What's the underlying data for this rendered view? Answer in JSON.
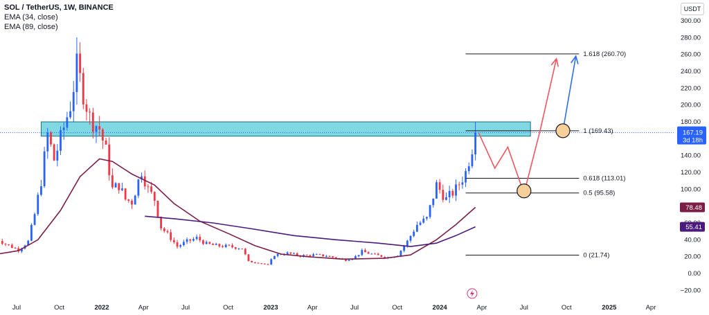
{
  "legend": {
    "title": "SOL / TetherUS, 1W, BINANCE",
    "ema34": "EMA (34, close)",
    "ema89": "EMA (89, close)"
  },
  "currency_label": "USDT",
  "colors": {
    "up": "#2962ff",
    "down": "#f23645",
    "ema34": "#7b1e47",
    "ema89": "#4a1a7d",
    "zone_fill": "#80d8e3",
    "zone_stroke": "#1b6f7a",
    "arrow_red": "#f0545f",
    "arrow_blue": "#2f6de8",
    "circle_fill": "#f6cf9b",
    "price_tag": "#2962ff",
    "ema34_tag": "#7b1e47",
    "ema89_tag": "#4a1a7d"
  },
  "chart_data": {
    "type": "candlestick",
    "yaxis": {
      "ticks": [
        -20,
        0,
        20,
        40,
        60,
        80,
        100,
        120,
        140,
        160,
        180,
        200,
        220,
        240,
        260,
        280,
        300
      ],
      "tick_labels": [
        "−20.00",
        "0.00",
        "20.00",
        "40.00",
        "60.00",
        "80.00",
        "100.00",
        "120.00",
        "140.00",
        "160.00",
        "180.00",
        "200.00",
        "220.00",
        "240.00",
        "260.00",
        "280.00",
        "300.00"
      ]
    },
    "xaxis": {
      "ticks": [
        {
          "label": "Jul",
          "date": "2021-07-01",
          "bold": false
        },
        {
          "label": "Oct",
          "date": "2021-10-01",
          "bold": false
        },
        {
          "label": "2022",
          "date": "2022-01-01",
          "bold": true
        },
        {
          "label": "Apr",
          "date": "2022-04-01",
          "bold": false
        },
        {
          "label": "Jul",
          "date": "2022-07-01",
          "bold": false
        },
        {
          "label": "Oct",
          "date": "2022-10-01",
          "bold": false
        },
        {
          "label": "2023",
          "date": "2023-01-01",
          "bold": true
        },
        {
          "label": "Apr",
          "date": "2023-04-01",
          "bold": false
        },
        {
          "label": "Jul",
          "date": "2023-07-01",
          "bold": false
        },
        {
          "label": "Oct",
          "date": "2023-10-01",
          "bold": false
        },
        {
          "label": "2024",
          "date": "2024-01-01",
          "bold": true
        },
        {
          "label": "Apr",
          "date": "2024-04-01",
          "bold": false
        },
        {
          "label": "Jul",
          "date": "2024-07-01",
          "bold": false
        },
        {
          "label": "Oct",
          "date": "2024-10-01",
          "bold": false
        },
        {
          "label": "2025",
          "date": "2025-01-01",
          "bold": true
        },
        {
          "label": "Apr",
          "date": "2025-04-01",
          "bold": false
        }
      ]
    },
    "price_path": [
      [
        "2021-05-10",
        45
      ],
      [
        "2021-06-07",
        35
      ],
      [
        "2021-07-05",
        28
      ],
      [
        "2021-07-26",
        38
      ],
      [
        "2021-08-09",
        70
      ],
      [
        "2021-08-23",
        110
      ],
      [
        "2021-09-06",
        165
      ],
      [
        "2021-09-20",
        135
      ],
      [
        "2021-10-04",
        160
      ],
      [
        "2021-10-25",
        200
      ],
      [
        "2021-11-08",
        245
      ],
      [
        "2021-11-22",
        215
      ],
      [
        "2021-12-06",
        185
      ],
      [
        "2021-12-27",
        172
      ],
      [
        "2022-01-10",
        145
      ],
      [
        "2022-01-24",
        100
      ],
      [
        "2022-02-07",
        105
      ],
      [
        "2022-02-21",
        88
      ],
      [
        "2022-03-07",
        85
      ],
      [
        "2022-03-28",
        122
      ],
      [
        "2022-04-11",
        100
      ],
      [
        "2022-04-25",
        88
      ],
      [
        "2022-05-09",
        55
      ],
      [
        "2022-05-30",
        42
      ],
      [
        "2022-06-13",
        32
      ],
      [
        "2022-07-04",
        38
      ],
      [
        "2022-07-25",
        42
      ],
      [
        "2022-08-15",
        35
      ],
      [
        "2022-09-05",
        33
      ],
      [
        "2022-10-03",
        32
      ],
      [
        "2022-10-31",
        30
      ],
      [
        "2022-11-14",
        14
      ],
      [
        "2022-12-05",
        13
      ],
      [
        "2022-12-26",
        10
      ],
      [
        "2023-01-09",
        22
      ],
      [
        "2023-02-06",
        24
      ],
      [
        "2023-03-06",
        21
      ],
      [
        "2023-04-03",
        22
      ],
      [
        "2023-05-01",
        21
      ],
      [
        "2023-06-12",
        16
      ],
      [
        "2023-07-03",
        20
      ],
      [
        "2023-07-17",
        26
      ],
      [
        "2023-08-14",
        22
      ],
      [
        "2023-09-11",
        19
      ],
      [
        "2023-10-02",
        22
      ],
      [
        "2023-10-23",
        38
      ],
      [
        "2023-11-13",
        58
      ],
      [
        "2023-12-04",
        65
      ],
      [
        "2023-12-25",
        105
      ],
      [
        "2024-01-15",
        88
      ],
      [
        "2024-02-05",
        100
      ],
      [
        "2024-02-26",
        120
      ],
      [
        "2024-03-11",
        150
      ],
      [
        "2024-03-18",
        167.19
      ]
    ],
    "series": [
      {
        "name": "EMA (34, close)",
        "points": [
          [
            "2021-05-10",
            22
          ],
          [
            "2021-07-05",
            27
          ],
          [
            "2021-08-16",
            40
          ],
          [
            "2021-10-04",
            75
          ],
          [
            "2021-11-15",
            115
          ],
          [
            "2021-12-27",
            136
          ],
          [
            "2022-01-24",
            133
          ],
          [
            "2022-03-07",
            118
          ],
          [
            "2022-04-25",
            105
          ],
          [
            "2022-06-06",
            83
          ],
          [
            "2022-08-01",
            62
          ],
          [
            "2022-10-03",
            47
          ],
          [
            "2022-11-28",
            33
          ],
          [
            "2023-01-23",
            23
          ],
          [
            "2023-03-20",
            20
          ],
          [
            "2023-06-05",
            17
          ],
          [
            "2023-09-04",
            18
          ],
          [
            "2023-10-30",
            22
          ],
          [
            "2023-12-25",
            40
          ],
          [
            "2024-02-05",
            58
          ],
          [
            "2024-03-18",
            78.48
          ]
        ]
      },
      {
        "name": "EMA (89, close)",
        "points": [
          [
            "2022-04-04",
            68
          ],
          [
            "2022-06-06",
            65
          ],
          [
            "2022-08-29",
            60
          ],
          [
            "2022-11-21",
            53
          ],
          [
            "2023-02-20",
            45
          ],
          [
            "2023-05-22",
            40
          ],
          [
            "2023-08-21",
            36
          ],
          [
            "2023-10-30",
            32
          ],
          [
            "2023-12-25",
            36
          ],
          [
            "2024-02-05",
            45
          ],
          [
            "2024-03-18",
            55.41
          ]
        ]
      }
    ],
    "fib_levels": [
      {
        "label": "1.618 (260.70)",
        "value": 260.7
      },
      {
        "label": "1 (169.43)",
        "value": 169.43
      },
      {
        "label": "0.618 (113.01)",
        "value": 113.01
      },
      {
        "label": "0.5 (95.58)",
        "value": 95.58
      },
      {
        "label": "0 (21.74)",
        "value": 21.74
      }
    ],
    "fib_range": [
      "2024-02-26",
      "2024-10-28"
    ],
    "resistance_zone": {
      "from": "2021-08-23",
      "to": "2024-07-15",
      "top": 180,
      "bottom": 163
    },
    "projection_red": [
      [
        "2024-03-25",
        167
      ],
      [
        "2024-04-29",
        125
      ],
      [
        "2024-05-27",
        150
      ],
      [
        "2024-07-01",
        95
      ],
      [
        "2024-08-05",
        170
      ],
      [
        "2024-09-09",
        255
      ]
    ],
    "projection_blue": [
      [
        "2024-09-23",
        169.43
      ],
      [
        "2024-10-21",
        258
      ]
    ],
    "circles": [
      [
        "2024-07-01",
        98
      ],
      [
        "2024-09-23",
        169.43
      ]
    ],
    "price_tag": {
      "value": 167.19,
      "label": "167.19",
      "sub": "3d 18h"
    },
    "ema_tags": [
      {
        "value": 78.48,
        "label": "78.48"
      },
      {
        "value": 55.41,
        "label": "55.41"
      }
    ],
    "ylim": [
      -25,
      310
    ]
  }
}
